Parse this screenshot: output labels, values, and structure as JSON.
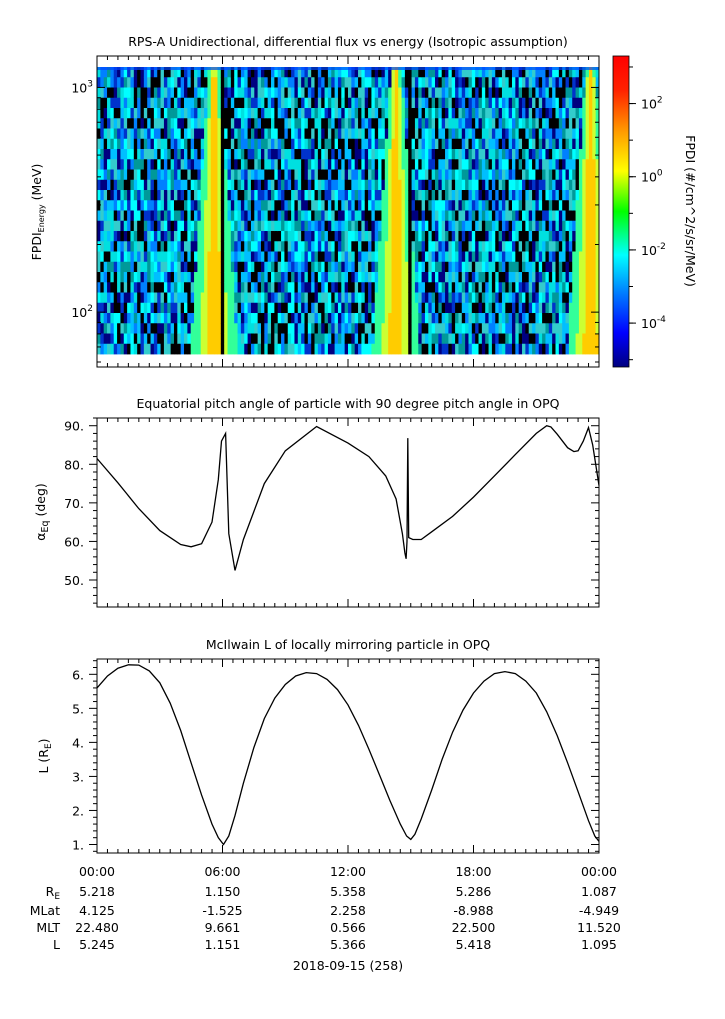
{
  "chart_data": [
    {
      "type": "heatmap",
      "title": "RPS-A Unidirectional, differential flux vs energy (Isotropic assumption)",
      "ylabel_main": "FPDI",
      "ylabel_sub": "Energy",
      "ylabel_unit": " (MeV)",
      "yscale": "log",
      "ylim": [
        57,
        1380
      ],
      "yticks": [
        {
          "value": 100,
          "base": "10",
          "exp": "2"
        },
        {
          "value": 1000,
          "base": "10",
          "exp": "3"
        }
      ],
      "colorbar": {
        "label": "FPDI (#/cm^2/s/sr/MeV)",
        "scale": "log",
        "range_exp": [
          -5.2,
          3.3
        ],
        "ticks": [
          {
            "base": "10",
            "exp": "2"
          },
          {
            "base": "10",
            "exp": "0"
          },
          {
            "base": "10",
            "exp": "-2"
          },
          {
            "base": "10",
            "exp": "-4"
          }
        ]
      },
      "bright_bands": [
        {
          "center_hour": 5.6,
          "note": "yellow/red enhancement"
        },
        {
          "center_hour": 14.3,
          "note": "yellow/red enhancement"
        },
        {
          "center_hour": 23.6,
          "note": "yellow enhancement"
        }
      ],
      "dark_gaps_hour": [
        6.05,
        15.0
      ]
    },
    {
      "type": "line",
      "title": "Equatorial pitch angle of particle with 90 degree pitch angle in OPQ",
      "ylabel_main": "α",
      "ylabel_sub": "Eq",
      "ylabel_unit": " (deg)",
      "ylim": [
        43,
        92
      ],
      "yticks": [
        "50.",
        "60.",
        "70.",
        "80.",
        "90."
      ],
      "series": [
        {
          "x_hours": [
            0,
            1,
            2,
            3,
            4,
            4.5,
            5,
            5.5,
            5.8,
            5.95,
            6.15,
            6.3,
            6.6,
            7,
            8,
            9,
            10.5,
            12,
            13,
            13.8,
            14.3,
            14.6,
            14.72,
            14.78,
            14.82,
            14.86,
            14.9,
            15.1,
            15.5,
            16,
            17,
            18,
            19,
            20,
            21,
            21.5,
            21.7,
            22,
            22.5,
            22.8,
            23,
            23.25,
            23.5,
            23.7,
            24
          ],
          "y_deg": [
            81.5,
            75.2,
            68.5,
            62.8,
            59.2,
            58.6,
            59.4,
            65,
            76,
            86,
            88,
            62,
            52.5,
            60.5,
            75,
            83.5,
            89.8,
            85.5,
            82,
            77,
            71,
            62,
            57,
            55.5,
            60,
            86.8,
            61,
            60.5,
            60.5,
            62.5,
            66.5,
            71.5,
            77,
            82.5,
            88,
            90,
            89.7,
            87.8,
            84.3,
            83.3,
            83.5,
            86,
            89.5,
            85,
            74.5
          ]
        }
      ]
    },
    {
      "type": "line",
      "title": "McIlwain L of locally mirroring particle in OPQ",
      "ylabel_main": "L (R",
      "ylabel_sub": "E",
      "ylabel_unit": ")",
      "ylim": [
        0.75,
        6.45
      ],
      "yticks": [
        "1.",
        "2.",
        "3.",
        "4.",
        "5.",
        "6."
      ],
      "series": [
        {
          "x_hours": [
            0,
            0.5,
            1,
            1.5,
            2,
            2.5,
            3,
            3.5,
            4,
            4.5,
            5,
            5.5,
            5.8,
            6.05,
            6.3,
            6.6,
            7,
            7.5,
            8,
            8.5,
            9,
            9.5,
            10,
            10.5,
            11,
            11.5,
            12,
            12.5,
            13,
            13.5,
            14,
            14.5,
            14.8,
            15,
            15.2,
            15.5,
            16,
            16.5,
            17,
            17.5,
            18,
            18.5,
            19,
            19.5,
            20,
            20.5,
            21,
            21.5,
            22,
            22.5,
            23,
            23.5,
            23.8,
            24
          ],
          "y_RE": [
            5.6,
            5.95,
            6.18,
            6.28,
            6.27,
            6.1,
            5.75,
            5.15,
            4.35,
            3.4,
            2.45,
            1.6,
            1.2,
            1.0,
            1.25,
            1.85,
            2.8,
            3.85,
            4.7,
            5.3,
            5.7,
            5.95,
            6.05,
            6.02,
            5.85,
            5.55,
            5.1,
            4.5,
            3.8,
            3.05,
            2.3,
            1.6,
            1.25,
            1.15,
            1.3,
            1.75,
            2.6,
            3.5,
            4.3,
            4.95,
            5.45,
            5.8,
            6.02,
            6.08,
            6.02,
            5.8,
            5.45,
            4.9,
            4.2,
            3.4,
            2.55,
            1.7,
            1.25,
            1.09
          ]
        }
      ]
    }
  ],
  "xaxis": {
    "tick_labels": [
      "00:00",
      "06:00",
      "12:00",
      "18:00",
      "00:00"
    ],
    "date_label": "2018-09-15 (258)"
  },
  "ephemeris": {
    "rows": [
      {
        "label": "R",
        "label_sub": "E",
        "values": [
          "5.218",
          "1.150",
          "5.358",
          "5.286",
          "1.087"
        ]
      },
      {
        "label": "MLat",
        "label_sub": "",
        "values": [
          "4.125",
          "-1.525",
          "2.258",
          "-8.988",
          "-4.949"
        ]
      },
      {
        "label": "MLT",
        "label_sub": "",
        "values": [
          "22.480",
          "9.661",
          "0.566",
          "22.500",
          "11.520"
        ]
      },
      {
        "label": "L",
        "label_sub": "",
        "values": [
          "5.245",
          "1.151",
          "5.366",
          "5.418",
          "1.095"
        ]
      }
    ]
  }
}
